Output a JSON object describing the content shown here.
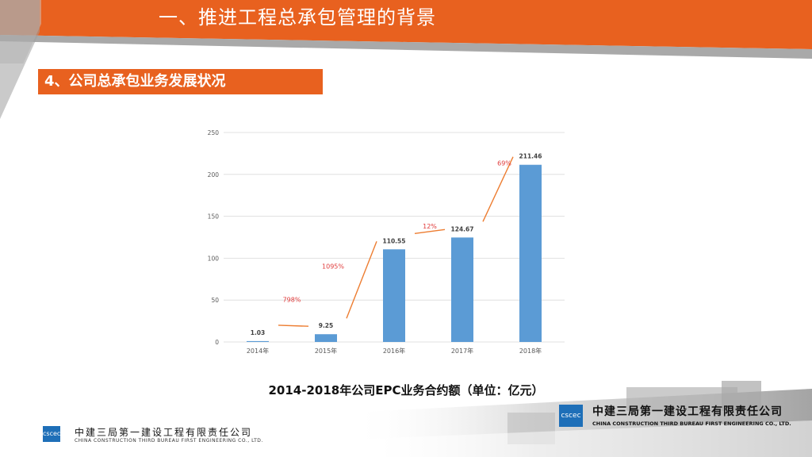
{
  "header": {
    "title": "一、推进工程总承包管理的背景",
    "section_title": "4、公司总承包业务发展状况",
    "accent_color": "#e8611f"
  },
  "chart_data": {
    "type": "bar",
    "categories": [
      "2014年",
      "2015年",
      "2016年",
      "2017年",
      "2018年"
    ],
    "values": [
      1.03,
      9.25,
      110.55,
      124.67,
      211.46
    ],
    "value_labels": [
      "1.03",
      "9.25",
      "110.55",
      "124.67",
      "211.46"
    ],
    "ylim": [
      0,
      250
    ],
    "yticks": [
      "0",
      "50",
      "100",
      "150",
      "200",
      "250"
    ],
    "grid": true,
    "bar_color": "#5b9bd5",
    "growth_annotations": [
      {
        "from": "2014年",
        "to": "2015年",
        "label": "798%"
      },
      {
        "from": "2015年",
        "to": "2016年",
        "label": "1095%"
      },
      {
        "from": "2016年",
        "to": "2017年",
        "label": "12%"
      },
      {
        "from": "2017年",
        "to": "2018年",
        "label": "69%"
      }
    ],
    "annotation_color": "#e03a3a",
    "trend_line_color": "#ed7d31",
    "caption": "2014-2018年公司EPC业务合约额（单位：亿元）"
  },
  "footer": {
    "logo_text": "cscec",
    "company_cn": "中建三局第一建设工程有限责任公司",
    "company_en": "CHINA CONSTRUCTION THIRD BUREAU FIRST ENGINEERING CO., LTD."
  }
}
